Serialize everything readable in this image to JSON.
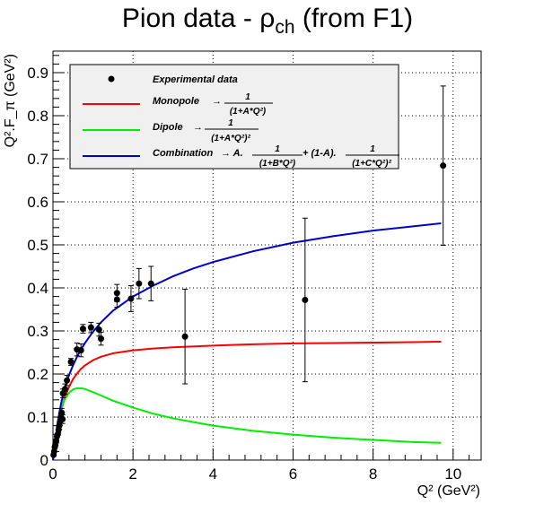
{
  "title": {
    "main": "Pion data - ρ",
    "sub": "ch",
    "tail": " (from F1)"
  },
  "chart_data": {
    "type": "scatter",
    "xlabel": "Q² (GeV²)",
    "ylabel": "Q².F_π (GeV²)",
    "xlim": [
      0,
      10.7
    ],
    "ylim": [
      0,
      0.95
    ],
    "xticks": [
      0,
      2,
      4,
      6,
      8,
      10
    ],
    "yticks": [
      0,
      0.1,
      0.2,
      0.3,
      0.4,
      0.5,
      0.6,
      0.7,
      0.8,
      0.9
    ],
    "grid": true,
    "legend_position": "top-left",
    "legend": [
      {
        "key": "data",
        "label": "Experimental data",
        "color": "#000000"
      },
      {
        "key": "monopole",
        "label": "Monopole",
        "color": "#ff0000"
      },
      {
        "key": "dipole",
        "label": "Dipole",
        "color": "#00ee00"
      },
      {
        "key": "combination",
        "label": "Combination",
        "color": "#0000cc"
      }
    ],
    "legend_formulas": {
      "monopole": {
        "arrow": "→",
        "num": "1",
        "den": "(1+A*Q²)"
      },
      "dipole": {
        "arrow": "→",
        "num": "1",
        "den": "(1+A*Q²)²"
      },
      "combination": {
        "arrow": "→ A.",
        "num1": "1",
        "den1": "(1+B*Q²)",
        "mid": " + (1-A).",
        "num2": "1",
        "den2": "(1+C*Q²)²"
      }
    },
    "data_points": [
      {
        "x": 0.015,
        "y": 0.012,
        "err": 0.003
      },
      {
        "x": 0.03,
        "y": 0.02,
        "err": 0.004
      },
      {
        "x": 0.045,
        "y": 0.03,
        "err": 0.004
      },
      {
        "x": 0.06,
        "y": 0.035,
        "err": 0.005
      },
      {
        "x": 0.08,
        "y": 0.045,
        "err": 0.005
      },
      {
        "x": 0.1,
        "y": 0.055,
        "err": 0.006
      },
      {
        "x": 0.12,
        "y": 0.06,
        "err": 0.006
      },
      {
        "x": 0.14,
        "y": 0.07,
        "err": 0.007
      },
      {
        "x": 0.16,
        "y": 0.08,
        "err": 0.008
      },
      {
        "x": 0.18,
        "y": 0.09,
        "err": 0.009
      },
      {
        "x": 0.2,
        "y": 0.1,
        "err": 0.01
      },
      {
        "x": 0.22,
        "y": 0.11,
        "err": 0.01
      },
      {
        "x": 0.24,
        "y": 0.095,
        "err": 0.01
      },
      {
        "x": 0.25,
        "y": 0.155,
        "err": 0.01
      },
      {
        "x": 0.3,
        "y": 0.165,
        "err": 0.012
      },
      {
        "x": 0.35,
        "y": 0.185,
        "err": 0.012
      },
      {
        "x": 0.45,
        "y": 0.228,
        "err": 0.008
      },
      {
        "x": 0.6,
        "y": 0.257,
        "err": 0.015
      },
      {
        "x": 0.7,
        "y": 0.255,
        "err": 0.015
      },
      {
        "x": 0.75,
        "y": 0.305,
        "err": 0.01
      },
      {
        "x": 0.95,
        "y": 0.308,
        "err": 0.012
      },
      {
        "x": 1.15,
        "y": 0.303,
        "err": 0.015
      },
      {
        "x": 1.2,
        "y": 0.282,
        "err": 0.015
      },
      {
        "x": 1.6,
        "y": 0.388,
        "err": 0.02
      },
      {
        "x": 1.6,
        "y": 0.373,
        "err": 0.018
      },
      {
        "x": 1.95,
        "y": 0.375,
        "err": 0.03
      },
      {
        "x": 2.15,
        "y": 0.41,
        "err": 0.035
      },
      {
        "x": 2.45,
        "y": 0.41,
        "err": 0.04
      },
      {
        "x": 3.3,
        "y": 0.287,
        "err": 0.11
      },
      {
        "x": 6.3,
        "y": 0.372,
        "err": 0.19
      },
      {
        "x": 9.75,
        "y": 0.684,
        "err": 0.185
      }
    ],
    "curves": {
      "monopole": {
        "x": [
          0,
          0.05,
          0.1,
          0.15,
          0.2,
          0.25,
          0.3,
          0.4,
          0.5,
          0.6,
          0.7,
          0.8,
          1.0,
          1.2,
          1.5,
          2.0,
          2.5,
          3.0,
          4.0,
          5.0,
          6.0,
          7.0,
          8.0,
          9.0,
          9.7
        ],
        "y": [
          0,
          0.035,
          0.066,
          0.091,
          0.112,
          0.13,
          0.146,
          0.17,
          0.188,
          0.201,
          0.212,
          0.22,
          0.232,
          0.24,
          0.248,
          0.255,
          0.259,
          0.262,
          0.266,
          0.269,
          0.271,
          0.272,
          0.273,
          0.274,
          0.275
        ]
      },
      "dipole": {
        "x": [
          0,
          0.05,
          0.1,
          0.15,
          0.2,
          0.25,
          0.3,
          0.4,
          0.5,
          0.6,
          0.7,
          0.8,
          1.0,
          1.2,
          1.5,
          2.0,
          2.5,
          3.0,
          4.0,
          5.0,
          6.0,
          7.0,
          8.0,
          9.0,
          9.7
        ],
        "y": [
          0,
          0.037,
          0.07,
          0.095,
          0.115,
          0.13,
          0.142,
          0.156,
          0.164,
          0.167,
          0.167,
          0.165,
          0.158,
          0.15,
          0.138,
          0.122,
          0.108,
          0.097,
          0.08,
          0.068,
          0.059,
          0.052,
          0.047,
          0.042,
          0.04
        ]
      },
      "combination": {
        "x": [
          0,
          0.05,
          0.1,
          0.15,
          0.2,
          0.25,
          0.3,
          0.4,
          0.5,
          0.6,
          0.7,
          0.8,
          1.0,
          1.2,
          1.5,
          2.0,
          2.5,
          3.0,
          3.5,
          4.0,
          5.0,
          6.0,
          7.0,
          8.0,
          9.0,
          9.7
        ],
        "y": [
          0,
          0.04,
          0.075,
          0.105,
          0.13,
          0.15,
          0.168,
          0.197,
          0.22,
          0.24,
          0.257,
          0.272,
          0.298,
          0.32,
          0.347,
          0.38,
          0.405,
          0.427,
          0.445,
          0.46,
          0.485,
          0.505,
          0.52,
          0.533,
          0.543,
          0.55
        ]
      }
    }
  }
}
